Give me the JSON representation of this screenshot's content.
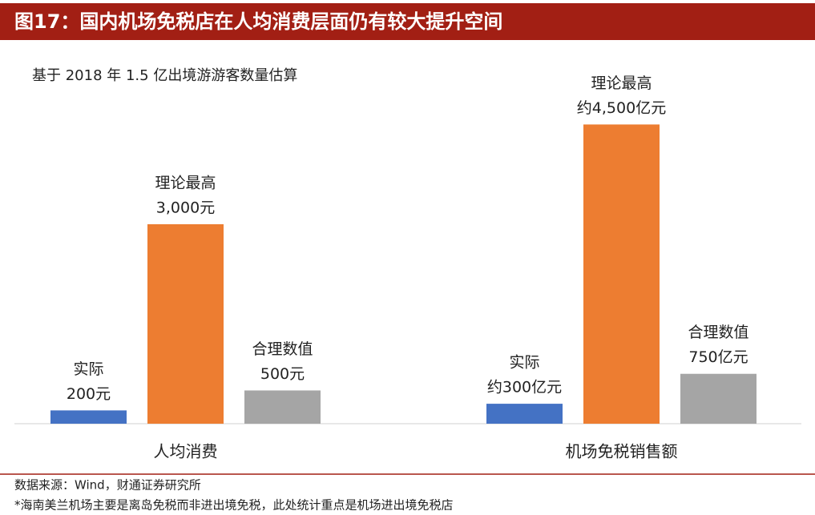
{
  "chart_data": {
    "type": "bar",
    "title": "图17：国内机场免税店在人均消费层面仍有较大提升空间",
    "subtitle": "基于 2018 年 1.5 亿出境游游客数量估算",
    "categories": [
      "人均消费",
      "机场免税销售额"
    ],
    "series": [
      {
        "name": "实际",
        "color": "#4472c4",
        "values": [
          200,
          300
        ],
        "value_labels": [
          "200元",
          "约300亿元"
        ]
      },
      {
        "name": "理论最高",
        "color": "#ed7d31",
        "values": [
          3000,
          4500
        ],
        "value_labels": [
          "3,000元",
          "约4,500亿元"
        ]
      },
      {
        "name": "合理数值",
        "color": "#a5a5a5",
        "values": [
          500,
          750
        ],
        "value_labels": [
          "500元",
          "750亿元"
        ]
      }
    ],
    "ylim": [
      0,
      5300
    ],
    "footnotes": [
      "数据来源：Wind，财通证券研究所",
      "*海南美兰机场主要是离岛免税而非进出境免税，此处统计重点是机场进出境免税店"
    ]
  }
}
